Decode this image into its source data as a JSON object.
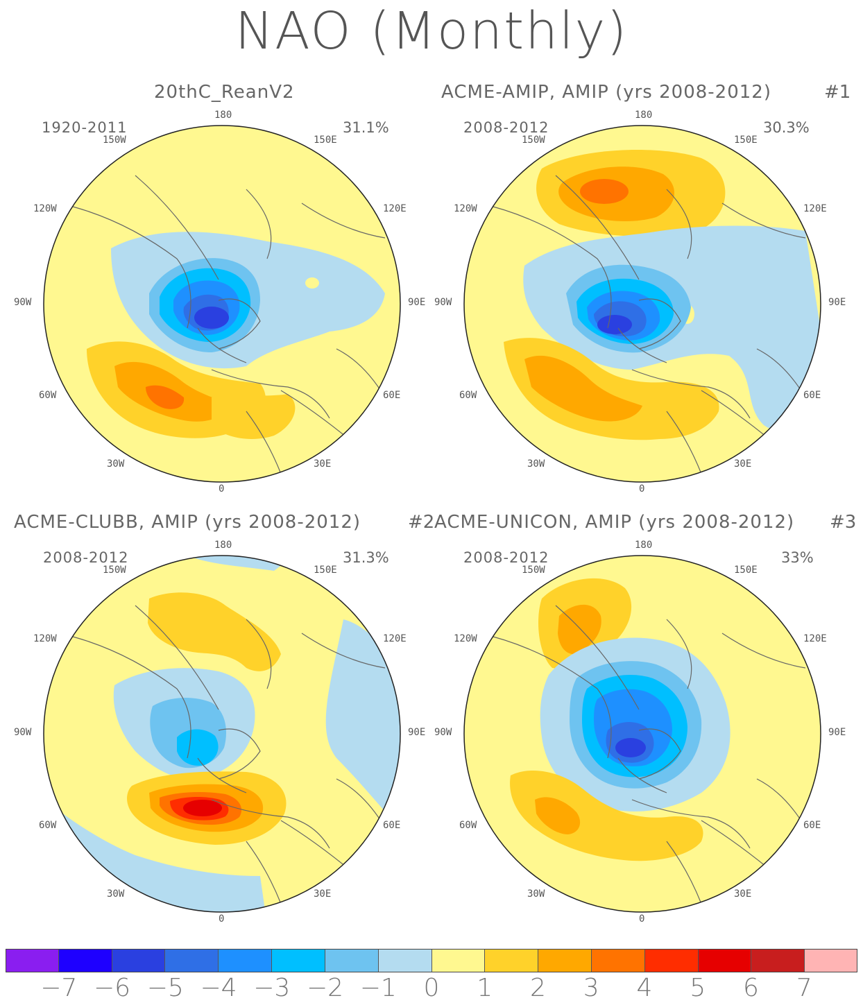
{
  "title": "NAO (Monthly)",
  "panels": [
    {
      "title": "20thC_ReanV2",
      "number": "",
      "years": "1920-2011",
      "percent": "31.1%"
    },
    {
      "title": "ACME-AMIP, AMIP (yrs 2008-2012)",
      "number": "#1",
      "years": "2008-2012",
      "percent": "30.3%"
    },
    {
      "title": "ACME-CLUBB, AMIP (yrs 2008-2012)",
      "number": "#2",
      "years": "2008-2012",
      "percent": "31.3%"
    },
    {
      "title": "ACME-UNICON, AMIP (yrs 2008-2012)",
      "number": "#3",
      "years": "2008-2012",
      "percent": "33%"
    }
  ],
  "longitude_labels": {
    "top": "180",
    "bottom": "0",
    "l150": "150W",
    "r150": "150E",
    "l120": "120W",
    "r120": "120E",
    "l90": "90W",
    "r90": "90E",
    "l60": "60W",
    "r60": "60E",
    "l30": "30W",
    "r30": "30E"
  },
  "colorbar": {
    "labels": [
      "-7",
      "-6",
      "-5",
      "-4",
      "-3",
      "-2",
      "-1",
      "0",
      "1",
      "2",
      "3",
      "4",
      "5",
      "6",
      "7"
    ],
    "colors": [
      "#8a1ef0",
      "#1e00ff",
      "#2a40e0",
      "#2f6fe6",
      "#1e90ff",
      "#00bfff",
      "#6ec3f0",
      "#b4dcf0",
      "#fff890",
      "#ffd22a",
      "#ffa800",
      "#ff7300",
      "#ff2d00",
      "#e60000",
      "#c81e1e",
      "#ffb4b4"
    ]
  }
}
